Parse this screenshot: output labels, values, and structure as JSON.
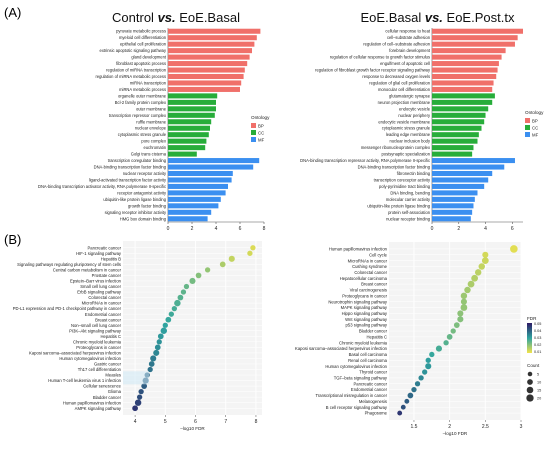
{
  "panels": {
    "a": "(A)",
    "b": "(B)"
  },
  "chart_data": [
    {
      "type": "bar",
      "orientation": "horizontal",
      "title_parts": [
        "Control ",
        "vs.",
        " EoE.Basal"
      ],
      "categories": [
        "pyruvate metabolic process",
        "myeloid cell differentiation",
        "epithelial cell proliferation",
        "extrinsic apoptotic signaling pathway",
        "gland development",
        "fibroblast apoptotic process",
        "regulation of miRNA transcription",
        "regulation of miRNA metabolic process",
        "miRNA transcription",
        "miRNA metabolic process",
        "organelle outer membrane",
        "Bcl-2 family protein complex",
        "outer membrane",
        "transcription repressor complex",
        "ruffle membrane",
        "nuclear envelope",
        "cytoplasmic stress granule",
        "pore complex",
        "euchromatin",
        "Golgi trans cisterna",
        "transcription coregulator binding",
        "DNA-binding transcription factor binding",
        "nuclear receptor activity",
        "ligand-activated transcription factor activity",
        "DNA-binding transcription activator activity, RNA polymerase II-specific",
        "receptor antagonist activity",
        "ubiquitin-like protein ligase binding",
        "growth factor binding",
        "signaling receptor inhibitor activity",
        "HMG box domain binding"
      ],
      "ontology": [
        "BP",
        "BP",
        "BP",
        "BP",
        "BP",
        "BP",
        "BP",
        "BP",
        "BP",
        "BP",
        "CC",
        "CC",
        "CC",
        "CC",
        "CC",
        "CC",
        "CC",
        "CC",
        "CC",
        "CC",
        "MF",
        "MF",
        "MF",
        "MF",
        "MF",
        "MF",
        "MF",
        "MF",
        "MF",
        "MF"
      ],
      "values": [
        7.7,
        7.4,
        7.2,
        7.0,
        6.8,
        6.6,
        6.4,
        6.3,
        6.1,
        6.0,
        4.1,
        4.0,
        4.0,
        3.9,
        3.6,
        3.5,
        3.4,
        3.2,
        3.1,
        2.4,
        7.6,
        7.1,
        5.4,
        5.3,
        5.0,
        4.8,
        4.4,
        4.2,
        3.6,
        3.3
      ],
      "xlim": [
        0,
        8
      ],
      "xticks": [
        0,
        2,
        4,
        6,
        8
      ],
      "legend": {
        "title": "Ontology",
        "entries": [
          "BP",
          "CC",
          "MF"
        ],
        "placement": "right"
      }
    },
    {
      "type": "bar",
      "orientation": "horizontal",
      "title_parts": [
        "EoE.Basal ",
        "vs.",
        " EoE.Post.tx"
      ],
      "categories": [
        "cellular response to heat",
        "cell–substrate adhesion",
        "regulation of cell–substrate adhesion",
        "forebrain development",
        "regulation of cellular response to growth factor stimulus",
        "engulfment of apoptotic cell",
        "regulation of fibroblast growth factor receptor signaling pathway",
        "response to decreased oxygen levels",
        "regulation of glial cell proliferation",
        "monocular cell differentiation",
        "glutamatergic synapse",
        "neuron projection membrane",
        "endocytic vesicle",
        "nuclear periphery",
        "endocytic vesicle membrane",
        "cytoplasmic stress granule",
        "leading edge membrane",
        "nuclear inclusion body",
        "messenger ribonucleoprotein complex",
        "postsynaptic specialization",
        "DNA-binding transcription repressor activity, RNA polymerase II-specific",
        "DNA-binding transcription factor binding",
        "fibronectin binding",
        "transcription coreceptor activity",
        "poly-pyrimidine tract binding",
        "DNA binding, bending",
        "molecular carrier activity",
        "ubiquitin-like protein ligase binding",
        "protein self-association",
        "nuclear receptor binding"
      ],
      "ontology": [
        "BP",
        "BP",
        "BP",
        "BP",
        "BP",
        "BP",
        "BP",
        "BP",
        "BP",
        "BP",
        "CC",
        "CC",
        "CC",
        "CC",
        "CC",
        "CC",
        "CC",
        "CC",
        "CC",
        "CC",
        "MF",
        "MF",
        "MF",
        "MF",
        "MF",
        "MF",
        "MF",
        "MF",
        "MF",
        "MF"
      ],
      "values": [
        6.8,
        6.4,
        6.2,
        5.5,
        5.2,
        5.0,
        4.9,
        4.8,
        4.6,
        4.5,
        4.7,
        4.5,
        4.2,
        4.0,
        3.9,
        3.7,
        3.5,
        3.4,
        3.1,
        3.0,
        6.2,
        5.4,
        4.5,
        4.2,
        3.9,
        3.4,
        3.2,
        3.1,
        3.0,
        2.9
      ],
      "xlim": [
        0,
        6.8
      ],
      "xticks": [
        0,
        2,
        4,
        6
      ],
      "legend": {
        "title": "Ontology",
        "entries": [
          "BP",
          "CC",
          "MF"
        ],
        "placement": "right"
      }
    },
    {
      "type": "scatter",
      "categories": [
        "Pancreatic cancer",
        "HIF-1 signaling pathway",
        "Hepatitis B",
        "Signaling pathways regulating pluripotency of stem cells",
        "Central carbon metabolism in cancer",
        "Prostate cancer",
        "Epstein–Barr virus infection",
        "Small cell lung cancer",
        "ErbB signaling pathway",
        "Colorectal cancer",
        "MicroRNAs in cancer",
        "PD-L1 expression and PD-1 checkpoint pathway in cancer",
        "Endometrial cancer",
        "Breast cancer",
        "Non–small cell lung cancer",
        "PI3K–Akt signaling pathway",
        "Hepatitis C",
        "Chronic myeloid leukemia",
        "Proteoglycans in cancer",
        "Kaposi sarcoma–associated herpesvirus infection",
        "Human cytomegalovirus infection",
        "Gastric cancer",
        "Th17 cell differentiation",
        "Measles",
        "Human T-cell leukemia virus 1 infection",
        "Cellular senescence",
        "Glioma",
        "Bladder cancer",
        "Human papillomavirus infection",
        "AMPK signaling pathway"
      ],
      "x": [
        7.9,
        7.8,
        7.2,
        6.9,
        6.4,
        6.1,
        5.9,
        5.7,
        5.6,
        5.5,
        5.4,
        5.3,
        5.2,
        5.1,
        5.0,
        4.95,
        4.85,
        4.8,
        4.75,
        4.7,
        4.6,
        4.55,
        4.5,
        4.4,
        4.35,
        4.3,
        4.2,
        4.15,
        4.1,
        4.0
      ],
      "fdr": [
        0.003,
        0.004,
        0.006,
        0.009,
        0.012,
        0.014,
        0.016,
        0.018,
        0.019,
        0.02,
        0.021,
        0.022,
        0.023,
        0.024,
        0.025,
        0.026,
        0.027,
        0.028,
        0.029,
        0.03,
        0.032,
        0.033,
        0.034,
        0.036,
        0.037,
        0.038,
        0.04,
        0.041,
        0.043,
        0.045
      ],
      "count": [
        8,
        8,
        12,
        10,
        8,
        10,
        12,
        8,
        8,
        10,
        14,
        8,
        8,
        10,
        8,
        14,
        10,
        8,
        10,
        12,
        12,
        10,
        8,
        8,
        12,
        10,
        8,
        8,
        14,
        10
      ],
      "xlim": [
        3.6,
        8.2
      ],
      "xticks": [
        4,
        5,
        6,
        7,
        8
      ],
      "xlabel": "–log10 FDR"
    },
    {
      "type": "scatter",
      "categories": [
        "Human papillomavirus infection",
        "Cell cycle",
        "MicroRNAs in cancer",
        "Cushing syndrome",
        "Colorectal cancer",
        "Hepatocellular carcinoma",
        "Breast cancer",
        "Viral carcinogenesis",
        "Proteoglycans in cancer",
        "Neurotrophin signaling pathway",
        "MAPK signaling pathway",
        "Hippo signaling pathway",
        "Wnt signaling pathway",
        "p53 signaling pathway",
        "Bladder cancer",
        "Hepatitis C",
        "Chronic myeloid leukemia",
        "Kaposi sarcoma–associated herpesvirus infection",
        "Basal cell carcinoma",
        "Renal cell carcinoma",
        "Human cytomegalovirus infection",
        "Thyroid cancer",
        "TGF–beta signaling pathway",
        "Pancreatic cancer",
        "Endometrial cancer",
        "Transcriptional misregulation in cancer",
        "Melanogenesis",
        "B cell receptor signaling pathway",
        "Phagosome"
      ],
      "x": [
        2.9,
        2.5,
        2.5,
        2.45,
        2.4,
        2.35,
        2.3,
        2.25,
        2.2,
        2.2,
        2.2,
        2.15,
        2.15,
        2.1,
        2.05,
        2.0,
        1.95,
        1.85,
        1.75,
        1.7,
        1.7,
        1.65,
        1.6,
        1.55,
        1.5,
        1.45,
        1.4,
        1.35,
        1.3
      ],
      "fdr": [
        0.002,
        0.004,
        0.005,
        0.006,
        0.007,
        0.008,
        0.009,
        0.01,
        0.011,
        0.012,
        0.012,
        0.013,
        0.014,
        0.015,
        0.016,
        0.018,
        0.02,
        0.022,
        0.024,
        0.026,
        0.027,
        0.028,
        0.03,
        0.032,
        0.034,
        0.036,
        0.038,
        0.04,
        0.045
      ],
      "count": [
        22,
        12,
        16,
        14,
        14,
        16,
        16,
        14,
        14,
        12,
        16,
        12,
        12,
        10,
        8,
        10,
        8,
        12,
        8,
        8,
        12,
        8,
        8,
        8,
        8,
        10,
        6,
        6,
        6
      ],
      "xlim": [
        1.15,
        3.0
      ],
      "xticks": [
        1.5,
        2.0,
        2.5,
        3.0
      ],
      "xlabel": "–log10 FDR",
      "legend_fdr": {
        "title": "FDR",
        "ticks": [
          0.05,
          0.04,
          0.03,
          0.02,
          0.01
        ]
      },
      "legend_count": {
        "title": "Count",
        "values": [
          5,
          10,
          15,
          20
        ]
      }
    }
  ],
  "colors": {
    "BP": "#f0706a",
    "CC": "#27ad3a",
    "MF": "#3b8ff0",
    "fdr_low": "#f2e34c",
    "fdr_mid": "#2fa4a0",
    "fdr_high": "#2e1a66"
  }
}
